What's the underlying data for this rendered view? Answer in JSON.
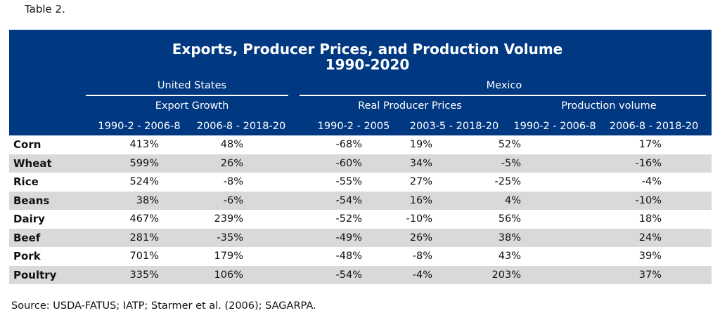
{
  "caption": "Table 2.",
  "title": {
    "line1": "Exports, Producer Prices, and Production Volume",
    "line2": "1990-2020"
  },
  "colors": {
    "header_bg": "#003882",
    "header_text": "#ffffff",
    "stripe": "#d9d9d9"
  },
  "groups": {
    "us": "United States",
    "mexico": "Mexico"
  },
  "subgroups": {
    "export_growth": "Export Growth",
    "real_producer_prices": "Real Producer Prices",
    "production_volume": "Production volume"
  },
  "columns": [
    "1990-2 - 2006-8",
    "2006-8 - 2018-20",
    "1990-2 - 2005",
    "2003-5 - 2018-20",
    "1990-2 - 2006-8",
    "2006-8 - 2018-20"
  ],
  "rows": [
    {
      "label": "Corn",
      "values": [
        "413%",
        "48%",
        "-68%",
        "19%",
        "52%",
        "17%"
      ]
    },
    {
      "label": "Wheat",
      "values": [
        "599%",
        "26%",
        "-60%",
        "34%",
        "-5%",
        "-16%"
      ]
    },
    {
      "label": "Rice",
      "values": [
        "524%",
        "-8%",
        "-55%",
        "27%",
        "-25%",
        "-4%"
      ]
    },
    {
      "label": "Beans",
      "values": [
        "38%",
        "-6%",
        "-54%",
        "16%",
        "4%",
        "-10%"
      ]
    },
    {
      "label": "Dairy",
      "values": [
        "467%",
        "239%",
        "-52%",
        "-10%",
        "56%",
        "18%"
      ]
    },
    {
      "label": "Beef",
      "values": [
        "281%",
        "-35%",
        "-49%",
        "26%",
        "38%",
        "24%"
      ]
    },
    {
      "label": "Pork",
      "values": [
        "701%",
        "179%",
        "-48%",
        "-8%",
        "43%",
        "39%"
      ]
    },
    {
      "label": "Poultry",
      "values": [
        "335%",
        "106%",
        "-54%",
        "-4%",
        "203%",
        "37%"
      ]
    }
  ],
  "source": "Source: USDA-FATUS; IATP; Starmer et al. (2006); SAGARPA."
}
